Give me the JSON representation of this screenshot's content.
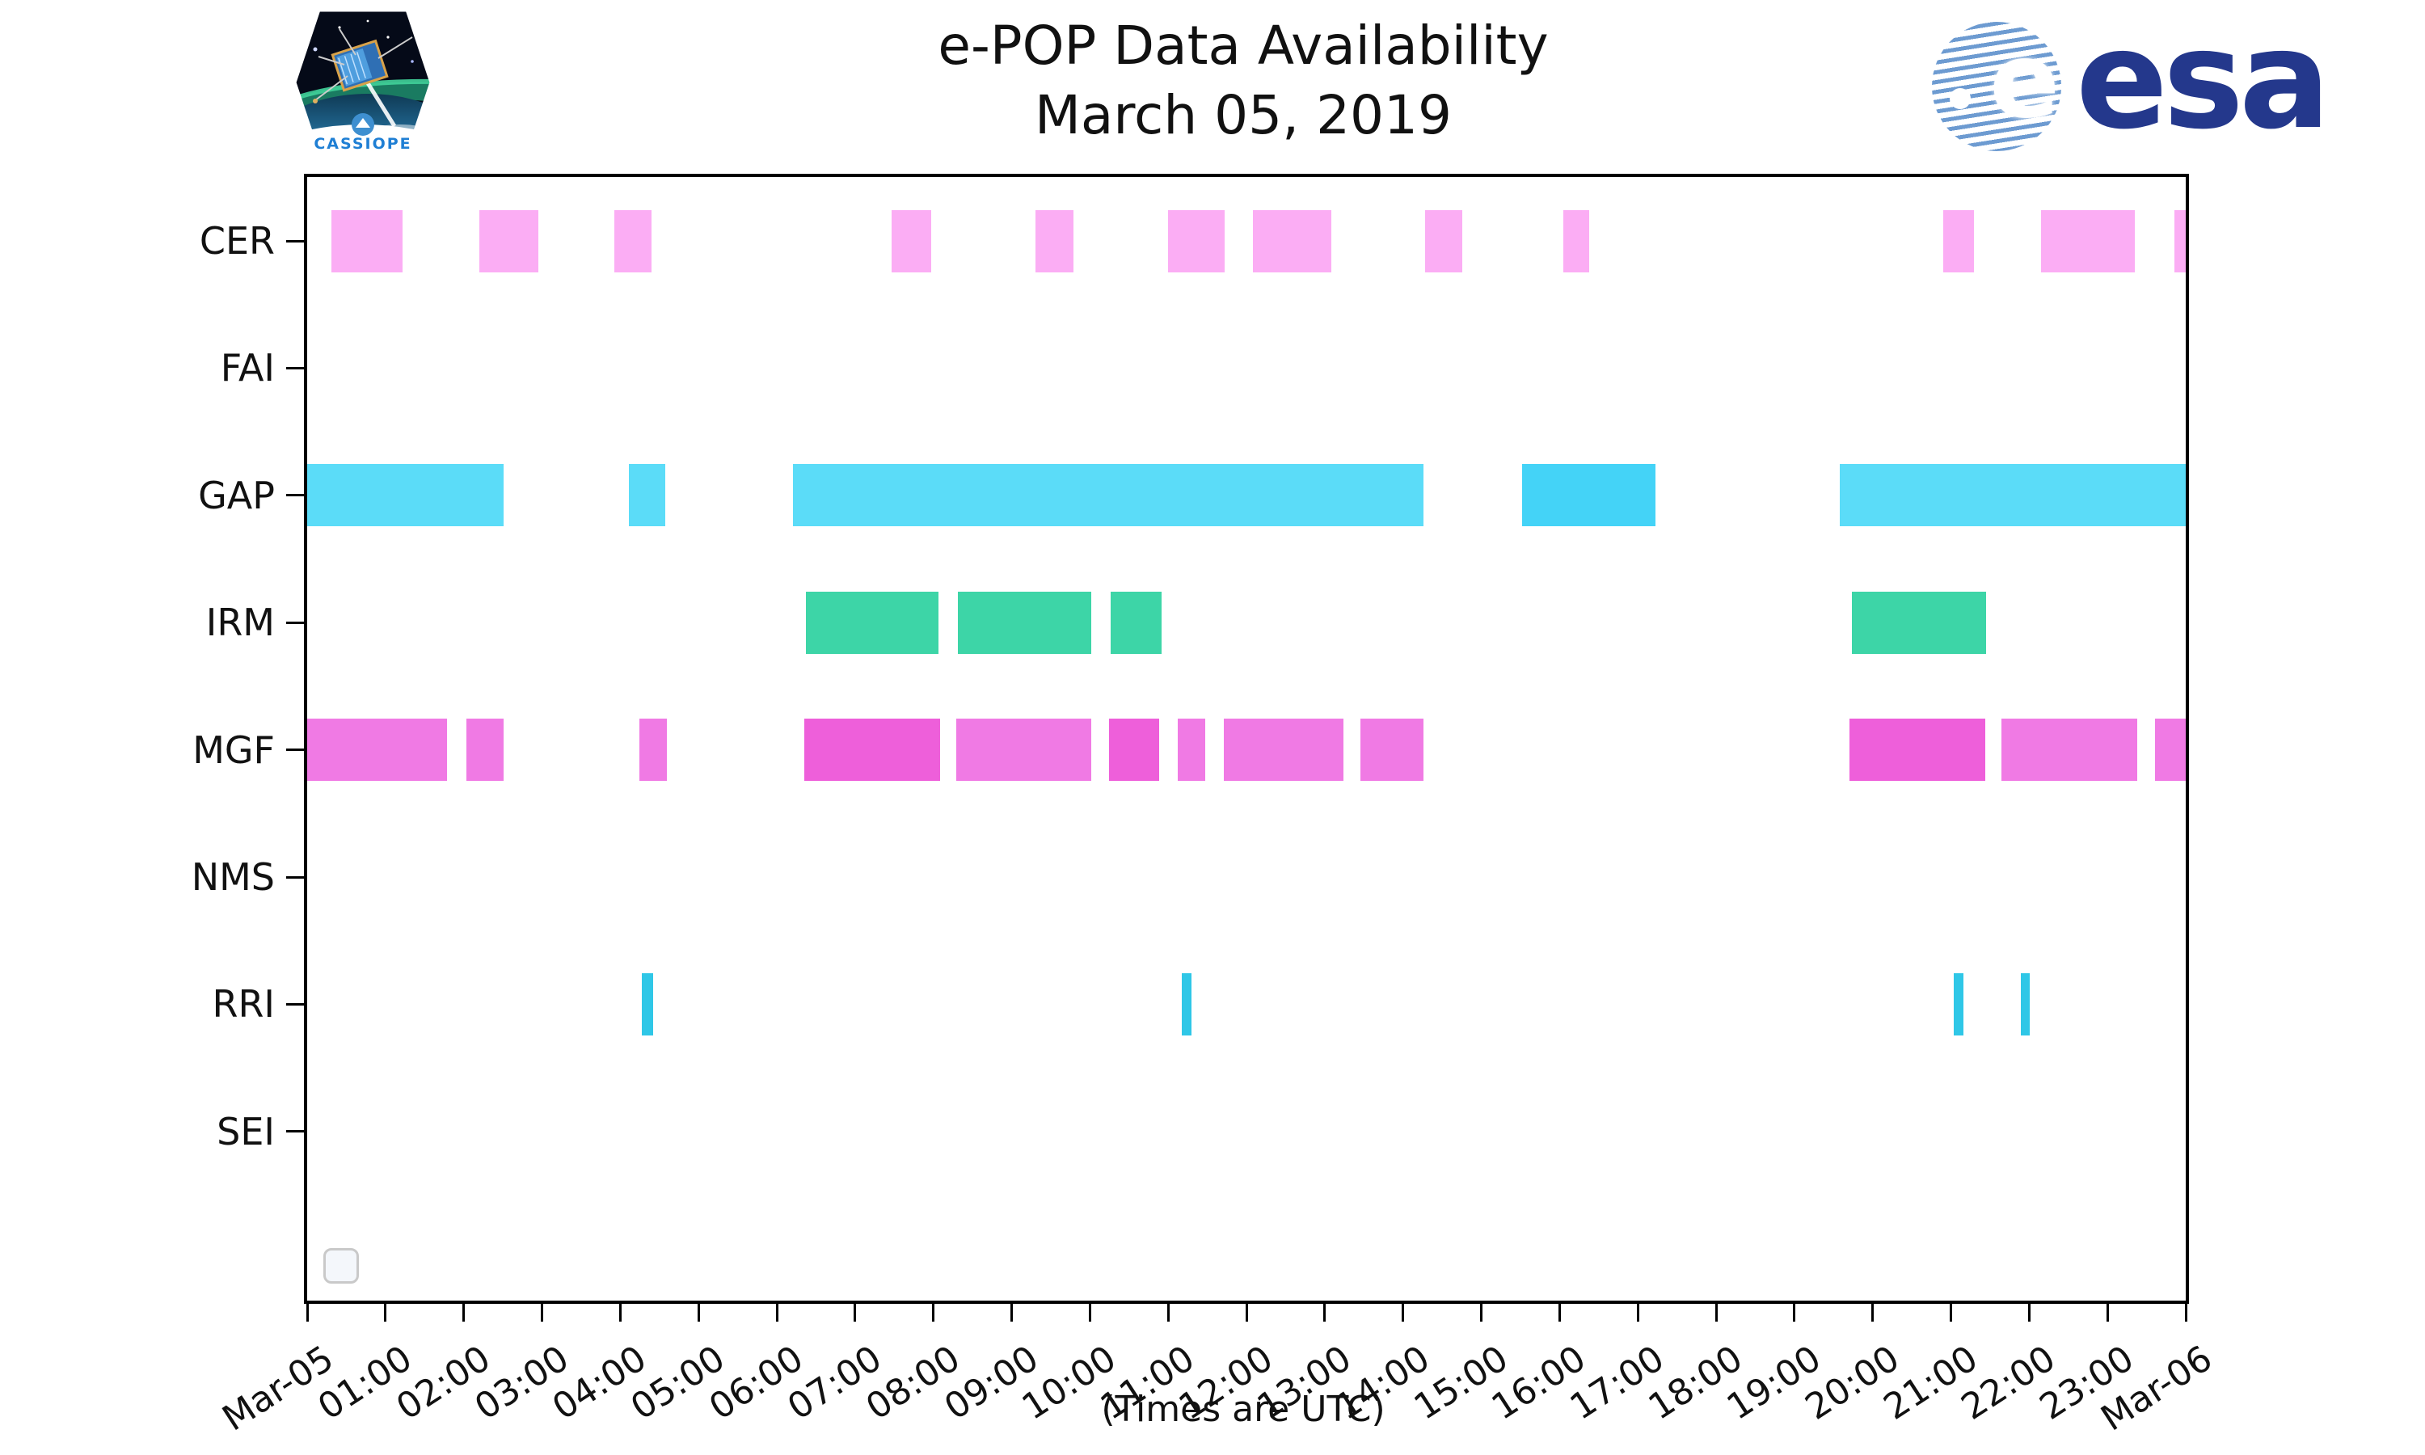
{
  "header": {
    "title_line1": "e-POP Data Availability",
    "title_line2": "March 05, 2019",
    "cassiope_patch_text": "CASSIOPE",
    "esa_wordmark": "esa"
  },
  "footer": {
    "caption": "(Times are UTC)"
  },
  "colors": {
    "cer": "#fbadf4",
    "gap": "#5bdcf8",
    "gap_dark": "#44d3f7",
    "irm": "#3dd5a7",
    "mgf": "#f07ae4",
    "mgf_dark": "#ee5fda",
    "rri": "#2fc7e7",
    "axis": "#000000",
    "esa_navy": "#24388c",
    "esa_stripe": "#6d9bd1",
    "cassiope_text": "#1f7fd4"
  },
  "chart_data": {
    "type": "timeline",
    "title": "e-POP Data Availability",
    "subtitle": "March 05, 2019",
    "xlabel": "(Times are UTC)",
    "x_axis": {
      "unit": "hours (UTC)",
      "min": 0,
      "max": 24,
      "tick_interval_hours": 1,
      "tick_labels": [
        "Mar-05",
        "01:00",
        "02:00",
        "03:00",
        "04:00",
        "05:00",
        "06:00",
        "07:00",
        "08:00",
        "09:00",
        "10:00",
        "11:00",
        "12:00",
        "13:00",
        "14:00",
        "15:00",
        "16:00",
        "17:00",
        "18:00",
        "19:00",
        "20:00",
        "21:00",
        "22:00",
        "23:00",
        "Mar-06"
      ]
    },
    "legend": {
      "visible": true,
      "entries": []
    },
    "rows": [
      {
        "label": "CER",
        "color": "#fbadf4",
        "intervals": [
          [
            0.31,
            1.22
          ],
          [
            2.2,
            2.95
          ],
          [
            3.92,
            4.4
          ],
          [
            7.47,
            7.97
          ],
          [
            9.3,
            9.79
          ],
          [
            11.0,
            11.72
          ],
          [
            12.08,
            13.08
          ],
          [
            14.28,
            14.76
          ],
          [
            16.05,
            16.38
          ],
          [
            20.9,
            21.29
          ],
          [
            22.15,
            23.35
          ],
          [
            23.86,
            24.0
          ]
        ]
      },
      {
        "label": "FAI",
        "color": "#fbadf4",
        "intervals": []
      },
      {
        "label": "GAP",
        "color": "#5bdcf8",
        "dark_color": "#44d3f7",
        "intervals": [
          [
            0.0,
            2.51
          ],
          [
            4.11,
            4.58
          ],
          [
            6.21,
            14.26
          ],
          [
            15.52,
            17.23,
            "dark"
          ],
          [
            19.58,
            24.0
          ]
        ]
      },
      {
        "label": "IRM",
        "color": "#3dd5a7",
        "intervals": [
          [
            6.37,
            8.07
          ],
          [
            8.31,
            10.02
          ],
          [
            10.26,
            10.92
          ],
          [
            19.74,
            21.45
          ]
        ]
      },
      {
        "label": "MGF",
        "color": "#f07ae4",
        "dark_color": "#ee5fda",
        "intervals": [
          [
            0.0,
            1.79
          ],
          [
            2.03,
            2.51
          ],
          [
            4.24,
            4.6
          ],
          [
            6.35,
            8.09,
            "dark"
          ],
          [
            8.29,
            10.02
          ],
          [
            10.24,
            10.88,
            "dark"
          ],
          [
            11.12,
            11.47
          ],
          [
            11.71,
            13.24
          ],
          [
            13.46,
            14.26
          ],
          [
            19.7,
            21.44,
            "dark"
          ],
          [
            21.65,
            23.38
          ],
          [
            23.61,
            24.0
          ]
        ]
      },
      {
        "label": "NMS",
        "color": "#3dd5a7",
        "intervals": []
      },
      {
        "label": "RRI",
        "color": "#2fc7e7",
        "intervals": [
          [
            4.28,
            4.42
          ],
          [
            11.17,
            11.3
          ],
          [
            21.04,
            21.16
          ],
          [
            21.89,
            22.01
          ]
        ]
      },
      {
        "label": "SEI",
        "color": "#2fc7e7",
        "intervals": []
      }
    ]
  }
}
